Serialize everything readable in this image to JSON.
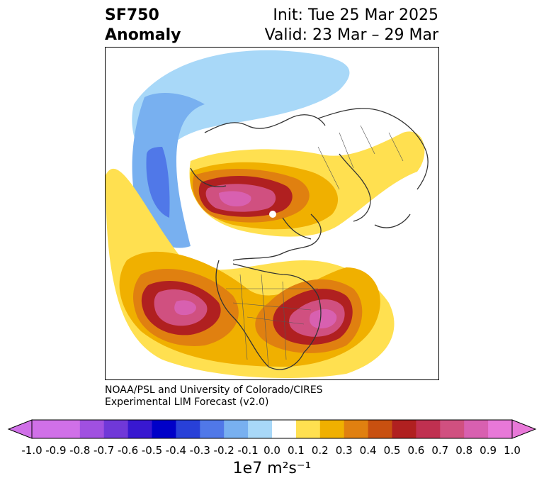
{
  "header": {
    "variable": "SF750",
    "kind": "Anomaly",
    "init": "Init: Tue 25 Mar 2025",
    "valid": "Valid: 23 Mar – 29 Mar"
  },
  "credit": {
    "line1": "NOAA/PSL and University of Colorado/CIRES",
    "line2": "Experimental LIM Forecast (v2.0)"
  },
  "colorbar": {
    "label": "1e7 m²s⁻¹",
    "ticks": [
      "-1.0",
      "-0.9",
      "-0.8",
      "-0.7",
      "-0.6",
      "-0.5",
      "-0.4",
      "-0.3",
      "-0.2",
      "-0.1",
      "0.0",
      "0.1",
      "0.2",
      "0.3",
      "0.4",
      "0.5",
      "0.6",
      "0.7",
      "0.8",
      "0.9",
      "1.0"
    ],
    "colors": [
      "#d070e8",
      "#a050e0",
      "#7038d8",
      "#3818d0",
      "#0000c8",
      "#2840d8",
      "#5078e8",
      "#78b0f0",
      "#a8d8f8",
      "#ffffff",
      "#ffe050",
      "#f0b000",
      "#e08010",
      "#c85010",
      "#b02020",
      "#c03050",
      "#d05080",
      "#d860b0",
      "#e878d8"
    ],
    "low_extend_color": "#d070e8",
    "high_extend_color": "#e878d8"
  },
  "map": {
    "projection": "north polar stereographic",
    "coastline_color": "#333333"
  }
}
